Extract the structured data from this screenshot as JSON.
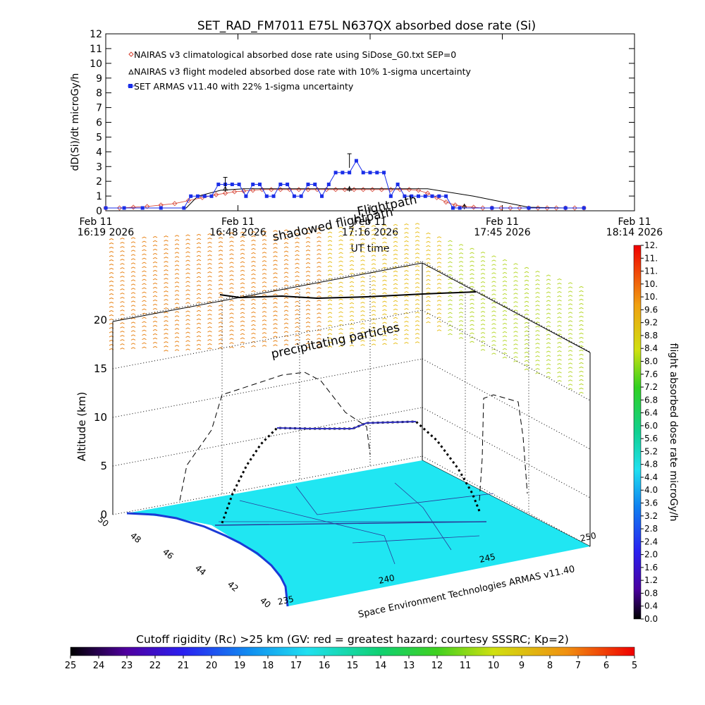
{
  "title": "SET_RAD_FM7011   E75L N637QX absorbed dose rate (Si)",
  "colors": {
    "nairas_clim": "#d64030",
    "nairas_flight": "#000000",
    "armas": "#1a2ee8",
    "map_land": "#20e6f2",
    "map_coast": "#1b3ad6"
  },
  "chart_data": [
    {
      "type": "line",
      "ylabel": "dD(Si)/dt microGy/h",
      "xlabel": "UT time",
      "ylim": [
        0,
        12
      ],
      "yticks": [
        "0",
        "1",
        "2",
        "3",
        "4",
        "5",
        "6",
        "7",
        "8",
        "9",
        "10",
        "11",
        "12"
      ],
      "xticks": [
        {
          "line1": "Feb 11",
          "line2": "16:19 2026"
        },
        {
          "line1": "Feb 11",
          "line2": "16:48 2026"
        },
        {
          "line1": "Feb 11",
          "line2": "17:16 2026"
        },
        {
          "line1": "Feb 11",
          "line2": "17:45 2026"
        },
        {
          "line1": "Feb 11",
          "line2": "18:14 2026"
        }
      ],
      "xlim_minutes_after_16_19": [
        0,
        115
      ],
      "legend_position": "top-left",
      "series": [
        {
          "name": "NAIRAS v3 climatological absorbed dose rate using SiDose_G0.txt SEP=0",
          "marker": "diamond",
          "x": [
            0,
            3,
            6,
            9,
            12,
            15,
            18,
            21,
            24,
            26,
            28,
            30,
            32,
            34,
            36,
            38,
            40,
            42,
            44,
            46,
            48,
            50,
            52,
            54,
            56,
            58,
            60,
            62,
            64,
            66,
            68,
            70,
            72,
            74,
            76,
            78,
            80,
            82,
            84,
            86,
            88,
            90,
            92,
            94,
            96,
            98,
            100,
            102,
            104
          ],
          "values": [
            0,
            0,
            0.05,
            0.1,
            0.2,
            0.3,
            0.5,
            0.7,
            0.9,
            1.0,
            1.1,
            1.15,
            1.2,
            1.25,
            1.25,
            1.25,
            1.25,
            1.25,
            1.25,
            1.25,
            1.25,
            1.25,
            1.25,
            1.25,
            1.25,
            1.25,
            1.25,
            1.25,
            1.25,
            1.25,
            1.2,
            1.0,
            0.7,
            0.4,
            0.2,
            0.1,
            0.05,
            0,
            0,
            0,
            0,
            0,
            0,
            0,
            0,
            0,
            0,
            0,
            0
          ]
        },
        {
          "name": "NAIRAS v3 flight modeled absorbed dose rate with 10% 1-sigma uncertainty",
          "marker": "triangle",
          "x": [
            0,
            17.5,
            20,
            25,
            30,
            40,
            50,
            60,
            70,
            80,
            92,
            100,
            104
          ],
          "values": [
            0,
            0,
            0.8,
            1.2,
            1.3,
            1.3,
            1.3,
            1.3,
            1.3,
            0.8,
            0.05,
            0,
            0
          ],
          "errorbars": [
            {
              "x": 26,
              "value": 1.3
            },
            {
              "x": 53,
              "value": 1.3
            },
            {
              "x": 78,
              "value": 0.1
            }
          ]
        },
        {
          "name": "SET ARMAS v11.40 with 22% 1-sigma uncertainty",
          "marker": "square",
          "x": [
            0,
            4,
            8,
            12,
            17,
            18.5,
            20,
            21.5,
            23,
            24.5,
            26,
            27.5,
            29,
            30.5,
            32,
            33.5,
            35,
            36.5,
            38,
            39.5,
            41,
            42.5,
            44,
            45.5,
            47,
            48.5,
            50,
            51.5,
            53,
            54.5,
            56,
            57.5,
            59,
            60.5,
            62,
            63.5,
            65,
            66.5,
            68,
            69.5,
            71,
            72.5,
            74,
            75.5,
            77,
            84,
            92,
            100,
            104
          ],
          "values": [
            0,
            0,
            0,
            0,
            0,
            0.8,
            0.8,
            0.8,
            0.8,
            1.6,
            1.6,
            1.6,
            1.6,
            0.8,
            1.6,
            1.6,
            0.8,
            0.8,
            1.6,
            1.6,
            0.8,
            0.8,
            1.6,
            1.6,
            0.8,
            1.6,
            2.4,
            2.4,
            2.4,
            3.2,
            2.4,
            2.4,
            2.4,
            2.4,
            0.8,
            1.6,
            0.8,
            0.8,
            0.8,
            0.8,
            0.8,
            0.8,
            0.8,
            0,
            0,
            0,
            0,
            0,
            0
          ],
          "errorbars": [
            {
              "x": 26,
              "value": 1.6
            },
            {
              "x": 53,
              "value": 3.2
            }
          ]
        }
      ]
    },
    {
      "type": "surface",
      "zlabel": "Altitude (km)",
      "zticks": [
        "0",
        "5",
        "10",
        "15",
        "20"
      ],
      "lat_ticks": [
        "50",
        "48",
        "46",
        "44",
        "42",
        "40"
      ],
      "lon_ticks": [
        "235",
        "240",
        "245",
        "250"
      ],
      "annotations": [
        "shadowed flightpath",
        "Flightpath",
        "precipitating particles"
      ],
      "credit": "Space Environment Technologies ARMAS v11.40"
    },
    {
      "type": "colorbar",
      "label": "flight absorbed dose rate microGy/h",
      "ticks": [
        "0.0",
        "0.4",
        "0.8",
        "1.2",
        "1.6",
        "2.0",
        "2.4",
        "2.8",
        "3.2",
        "3.6",
        "4.0",
        "4.4",
        "4.8",
        "5.2",
        "5.6",
        "6.0",
        "6.4",
        "6.8",
        "7.2",
        "7.6",
        "8.0",
        "8.4",
        "8.8",
        "9.2",
        "9.6",
        "10.",
        "10.",
        "11.",
        "11.",
        "12."
      ]
    },
    {
      "type": "colorbar",
      "label": "Cutoff rigidity (Rc) >25 km (GV: red = greatest hazard; courtesy SSSRC; Kp=2)",
      "ticks": [
        "25",
        "24",
        "23",
        "22",
        "21",
        "20",
        "19",
        "18",
        "17",
        "16",
        "15",
        "14",
        "13",
        "12",
        "11",
        "10",
        "9",
        "8",
        "7",
        "6",
        "5"
      ]
    }
  ]
}
